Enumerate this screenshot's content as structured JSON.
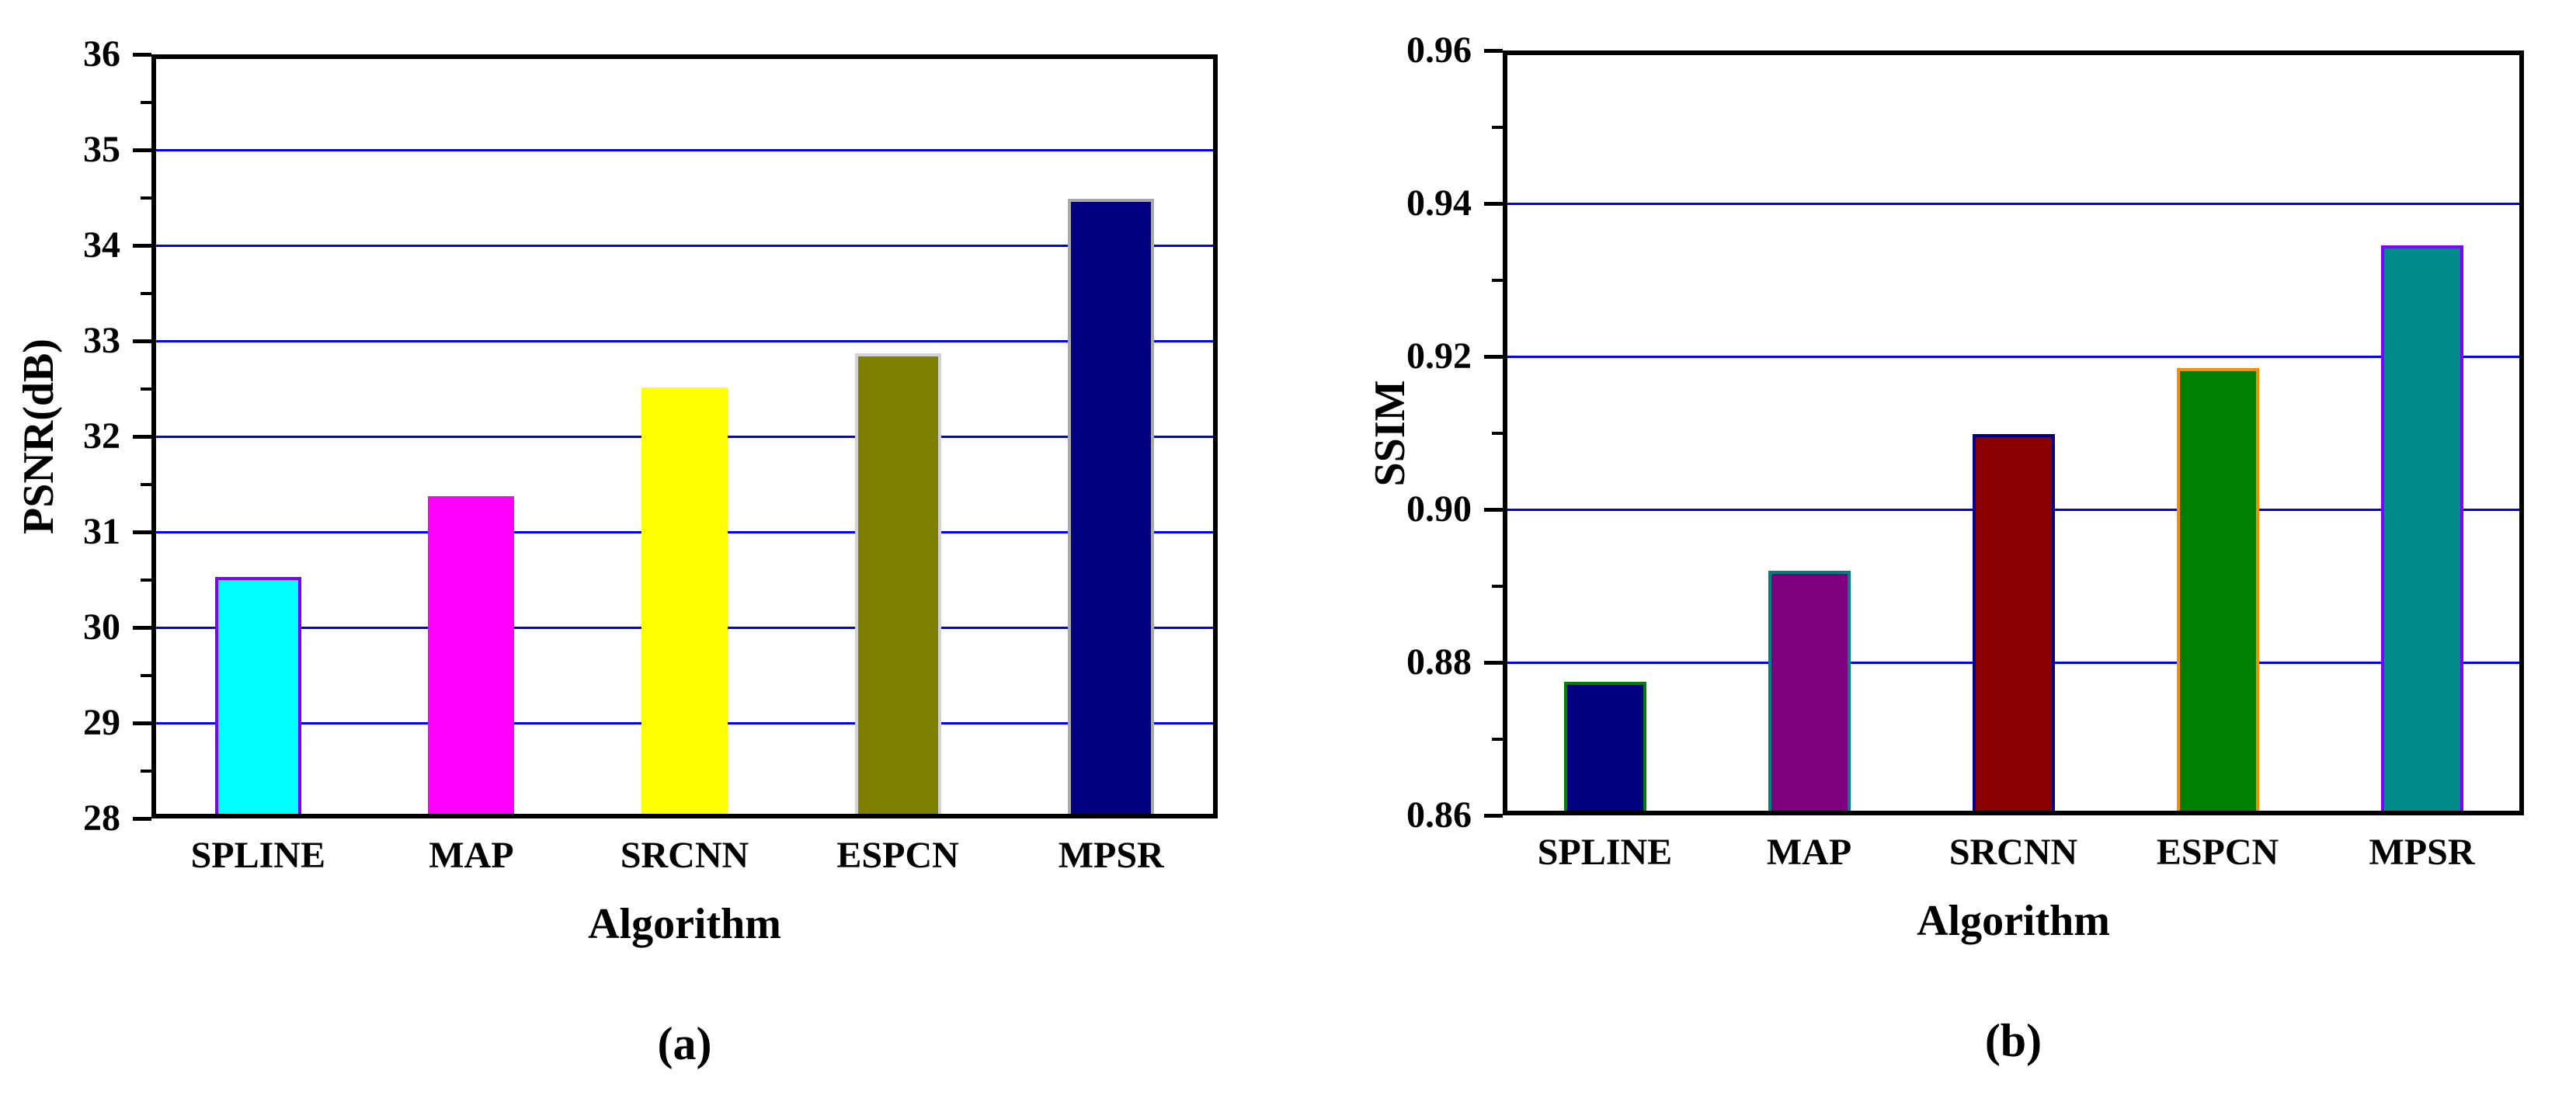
{
  "page": {
    "background": "#FFFFFF"
  },
  "chart_data": [
    {
      "id": "a",
      "type": "bar",
      "title": "",
      "caption": "(a)",
      "xlabel": "Algorithm",
      "ylabel": "PSNR(dB)",
      "categories": [
        "SPLINE",
        "MAP",
        "SRCNN",
        "ESPCN",
        "MPSR"
      ],
      "values": [
        30.53,
        31.37,
        32.51,
        32.87,
        34.49
      ],
      "bar_fills": [
        "#00FFFF",
        "#FF00FF",
        "#FFFF00",
        "#7F7F00",
        "#000080"
      ],
      "bar_edges": [
        "#7F00FF",
        "#FF00FF",
        "#FFFF00",
        "#D3D3D3",
        "#A9A9A9"
      ],
      "ylim": [
        28,
        36
      ],
      "yticks": [
        {
          "v": 28,
          "label": "28"
        },
        {
          "v": 29,
          "label": "29"
        },
        {
          "v": 30,
          "label": "30"
        },
        {
          "v": 31,
          "label": "31"
        },
        {
          "v": 32,
          "label": "32"
        },
        {
          "v": 33,
          "label": "33"
        },
        {
          "v": 34,
          "label": "34"
        },
        {
          "v": 35,
          "label": "35"
        },
        {
          "v": 36,
          "label": "36"
        }
      ],
      "yminor": [
        28.5,
        29.5,
        30.5,
        31.5,
        32.5,
        33.5,
        34.5,
        35.5
      ],
      "gridlines": [
        29,
        30,
        31,
        32,
        33,
        34,
        35
      ],
      "grid_color": "#0000F0",
      "grid": "horizontal-major",
      "legend": "none"
    },
    {
      "id": "b",
      "type": "bar",
      "title": "",
      "caption": "(b)",
      "xlabel": "Algorithm",
      "ylabel": "SSIM",
      "categories": [
        "SPLINE",
        "MAP",
        "SRCNN",
        "ESPCN",
        "MPSR"
      ],
      "values": [
        0.8775,
        0.892,
        0.9098,
        0.9185,
        0.9345
      ],
      "bar_fills": [
        "#000080",
        "#7F007F",
        "#8B0000",
        "#008000",
        "#008B8B"
      ],
      "bar_edges": [
        "#007F00",
        "#008080",
        "#00008B",
        "#FF8C00",
        "#7F00FF"
      ],
      "ylim": [
        0.86,
        0.96
      ],
      "yticks": [
        {
          "v": 0.86,
          "label": "0.86"
        },
        {
          "v": 0.88,
          "label": "0.88"
        },
        {
          "v": 0.9,
          "label": "0.90"
        },
        {
          "v": 0.92,
          "label": "0.92"
        },
        {
          "v": 0.94,
          "label": "0.94"
        },
        {
          "v": 0.96,
          "label": "0.96"
        }
      ],
      "yminor": [
        0.87,
        0.89,
        0.91,
        0.93,
        0.95
      ],
      "gridlines": [
        0.88,
        0.9,
        0.92,
        0.94
      ],
      "grid_color": "#0000F0",
      "grid": "horizontal-major",
      "legend": "none"
    }
  ]
}
